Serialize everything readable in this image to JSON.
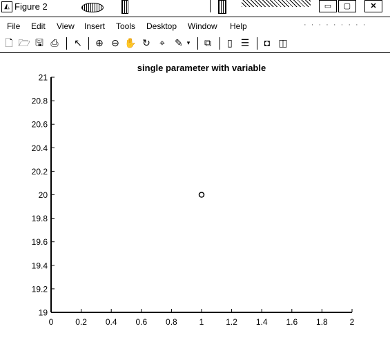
{
  "window": {
    "title": "Figure 2",
    "icon": "matlab-figure-icon",
    "controls": [
      "minimize",
      "maximize",
      "close"
    ]
  },
  "menu": {
    "items": [
      "File",
      "Edit",
      "View",
      "Insert",
      "Tools",
      "Desktop",
      "Window",
      "Help"
    ]
  },
  "toolbar": {
    "icons": [
      "new-figure-icon",
      "open-file-icon",
      "save-icon",
      "print-icon",
      "edit-plot-arrow-icon",
      "zoom-in-icon",
      "zoom-out-icon",
      "pan-hand-icon",
      "rotate-3d-icon",
      "data-cursor-icon",
      "brush-icon",
      "brush-dropdown-icon",
      "link-plot-icon",
      "insert-colorbar-icon",
      "insert-legend-icon",
      "hide-plot-tools-icon",
      "show-plot-tools-icon"
    ]
  },
  "chart_data": {
    "type": "scatter",
    "title": "single parameter with variable",
    "xlabel": "",
    "ylabel": "",
    "x": [
      1
    ],
    "y": [
      20
    ],
    "marker": "circle",
    "xlim": [
      0,
      2
    ],
    "ylim": [
      19,
      21
    ],
    "xticks": [
      "0",
      "0.2",
      "0.4",
      "0.6",
      "0.8",
      "1",
      "1.2",
      "1.4",
      "1.6",
      "1.8",
      "2"
    ],
    "yticks": [
      "19",
      "19.2",
      "19.4",
      "19.6",
      "19.8",
      "20",
      "20.2",
      "20.4",
      "20.6",
      "20.8",
      "21"
    ],
    "grid": false,
    "colors": {
      "marker": "#000000",
      "axes": "#000000",
      "background": "#ffffff"
    }
  }
}
